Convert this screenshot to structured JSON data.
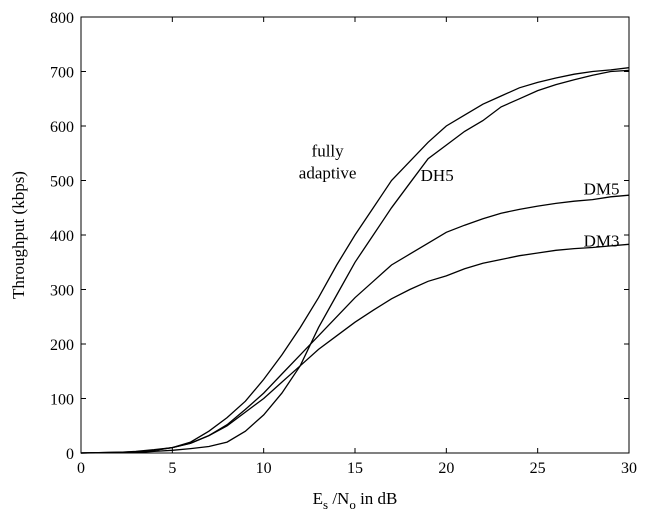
{
  "chart_data": {
    "type": "line",
    "title": "",
    "xlabel": "E_s / N_o in dB",
    "xlabel_parts": {
      "e": "E",
      "e_sub": "s",
      "slash": " /N",
      "n_sub": "o",
      "rest": " in dB"
    },
    "ylabel": "Throughput (kbps)",
    "xlim": [
      0,
      30
    ],
    "ylim": [
      0,
      800
    ],
    "xticks": [
      0,
      5,
      10,
      15,
      20,
      25,
      30
    ],
    "yticks": [
      0,
      100,
      200,
      300,
      400,
      500,
      600,
      700,
      800
    ],
    "grid": false,
    "line_color": "#000000",
    "series": [
      {
        "name": "fully adaptive",
        "x": [
          0,
          2,
          3,
          4,
          5,
          6,
          7,
          8,
          9,
          10,
          11,
          12,
          13,
          14,
          15,
          16,
          17,
          18,
          19,
          20,
          21,
          22,
          23,
          24,
          25,
          26,
          27,
          28,
          29,
          30
        ],
        "y": [
          0,
          1,
          3,
          6,
          10,
          20,
          40,
          65,
          95,
          135,
          180,
          230,
          285,
          345,
          400,
          450,
          500,
          535,
          570,
          600,
          620,
          640,
          655,
          670,
          680,
          688,
          695,
          700,
          703,
          707
        ]
      },
      {
        "name": "DH5",
        "x": [
          0,
          3,
          4,
          5,
          6,
          7,
          8,
          9,
          10,
          11,
          12,
          13,
          14,
          15,
          16,
          17,
          18,
          19,
          20,
          21,
          22,
          23,
          24,
          25,
          26,
          27,
          28,
          29,
          30
        ],
        "y": [
          0,
          1,
          3,
          5,
          8,
          12,
          20,
          40,
          70,
          110,
          160,
          230,
          290,
          350,
          400,
          450,
          495,
          540,
          565,
          590,
          610,
          635,
          650,
          665,
          676,
          685,
          693,
          700,
          702
        ]
      },
      {
        "name": "DM5",
        "x": [
          0,
          3,
          4,
          5,
          6,
          7,
          8,
          9,
          10,
          11,
          12,
          13,
          14,
          15,
          16,
          17,
          18,
          19,
          20,
          21,
          22,
          23,
          24,
          25,
          26,
          27,
          28,
          29,
          30
        ],
        "y": [
          0,
          2,
          5,
          10,
          18,
          32,
          52,
          80,
          110,
          145,
          180,
          215,
          250,
          285,
          315,
          345,
          365,
          385,
          405,
          418,
          430,
          440,
          447,
          453,
          458,
          462,
          465,
          470,
          473
        ]
      },
      {
        "name": "DM3",
        "x": [
          0,
          3,
          4,
          5,
          6,
          7,
          8,
          9,
          10,
          11,
          12,
          13,
          14,
          15,
          16,
          17,
          18,
          19,
          20,
          21,
          22,
          23,
          24,
          25,
          26,
          27,
          28,
          29,
          30
        ],
        "y": [
          0,
          2,
          5,
          10,
          18,
          32,
          50,
          75,
          100,
          130,
          160,
          190,
          215,
          240,
          262,
          283,
          300,
          315,
          325,
          338,
          348,
          355,
          362,
          367,
          372,
          375,
          377,
          380,
          383
        ]
      }
    ],
    "annotations": [
      {
        "series": "fully adaptive",
        "lines": [
          "fully",
          "adaptive"
        ],
        "x": 13.5,
        "y": 515
      },
      {
        "series": "DH5",
        "lines": [
          "DH5"
        ],
        "x": 19.5,
        "y": 510
      },
      {
        "series": "DM5",
        "lines": [
          "DM5"
        ],
        "x": 28.5,
        "y": 485
      },
      {
        "series": "DM3",
        "lines": [
          "DM3"
        ],
        "x": 28.5,
        "y": 390
      }
    ]
  }
}
